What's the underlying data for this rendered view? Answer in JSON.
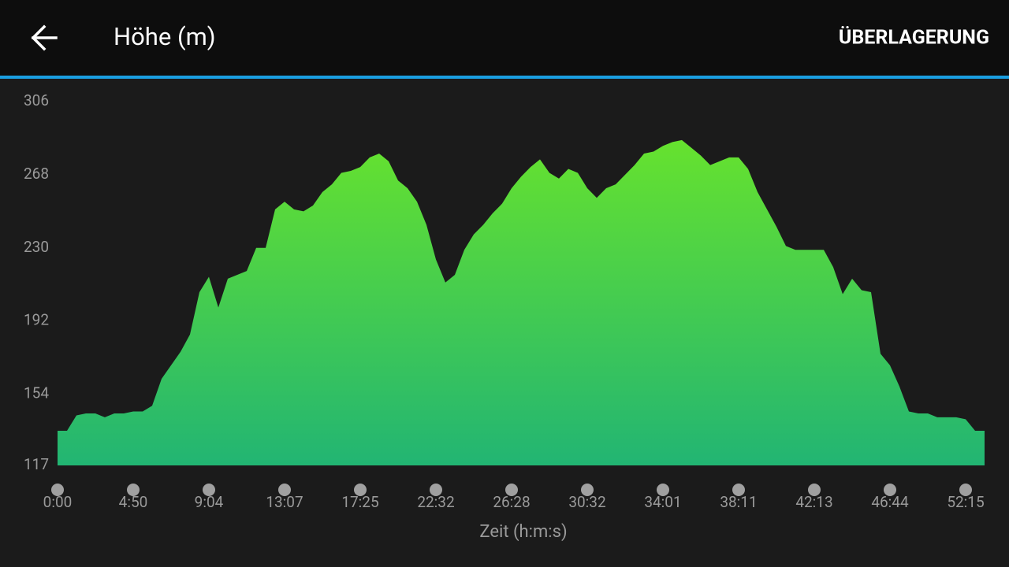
{
  "header": {
    "title": "Höhe (m)",
    "action": "ÜBERLAGERUNG"
  },
  "chart_data": {
    "type": "area",
    "x_label": "Zeit (h:m:s)",
    "x": [
      0,
      1,
      2,
      3,
      4,
      5,
      6,
      7,
      8,
      9,
      10,
      11,
      12,
      13,
      14,
      15,
      16,
      17,
      18,
      19,
      20,
      21,
      22,
      23,
      24,
      25,
      26,
      27,
      28,
      29,
      30,
      31,
      32,
      33,
      34,
      35,
      36,
      37,
      38,
      39,
      40,
      41,
      42,
      43,
      44,
      45,
      46,
      47,
      48,
      49,
      50,
      51,
      52,
      53,
      54,
      55,
      56,
      57,
      58,
      59,
      60,
      61,
      62,
      63,
      64,
      65,
      66,
      67,
      68,
      69,
      70,
      71,
      72,
      73,
      74,
      75,
      76,
      77,
      78,
      79,
      80,
      81,
      82,
      83,
      84,
      85,
      86,
      87,
      88,
      89,
      90,
      91,
      92,
      93,
      94,
      95,
      96,
      97,
      98
    ],
    "series": [
      {
        "gradient": [
          "#66e22e",
          "#22b573"
        ],
        "values": [
          135,
          135,
          143,
          144,
          144,
          142,
          144,
          144,
          145,
          145,
          148,
          162,
          169,
          176,
          185,
          207,
          215,
          199,
          214,
          216,
          218,
          230,
          230,
          250,
          254,
          250,
          249,
          252,
          259,
          263,
          269,
          270,
          272,
          277,
          279,
          275,
          265,
          261,
          254,
          242,
          224,
          212,
          216,
          229,
          237,
          242,
          248,
          253,
          261,
          267,
          272,
          276,
          269,
          266,
          271,
          269,
          261,
          256,
          261,
          263,
          268,
          273,
          279,
          280,
          283,
          285,
          286,
          282,
          278,
          273,
          275,
          277,
          277,
          271,
          259,
          250,
          241,
          231,
          229,
          229,
          229,
          229,
          220,
          206,
          214,
          208,
          207,
          175,
          169,
          158,
          145,
          144,
          144,
          142,
          142,
          142,
          141,
          135,
          135
        ]
      }
    ],
    "xlim": [
      0,
      98
    ],
    "xticks": [
      {
        "value": 0,
        "label": "0:00"
      },
      {
        "value": 8,
        "label": "4:50"
      },
      {
        "value": 16,
        "label": "9:04"
      },
      {
        "value": 24,
        "label": "13:07"
      },
      {
        "value": 32,
        "label": "17:25"
      },
      {
        "value": 40,
        "label": "22:32"
      },
      {
        "value": 48,
        "label": "26:28"
      },
      {
        "value": 56,
        "label": "30:32"
      },
      {
        "value": 64,
        "label": "34:01"
      },
      {
        "value": 72,
        "label": "38:11"
      },
      {
        "value": 80,
        "label": "42:13"
      },
      {
        "value": 88,
        "label": "46:44"
      },
      {
        "value": 96,
        "label": "52:15"
      }
    ],
    "ylim": [
      117,
      306
    ],
    "yticks": [
      117,
      154,
      192,
      230,
      268,
      306
    ]
  }
}
